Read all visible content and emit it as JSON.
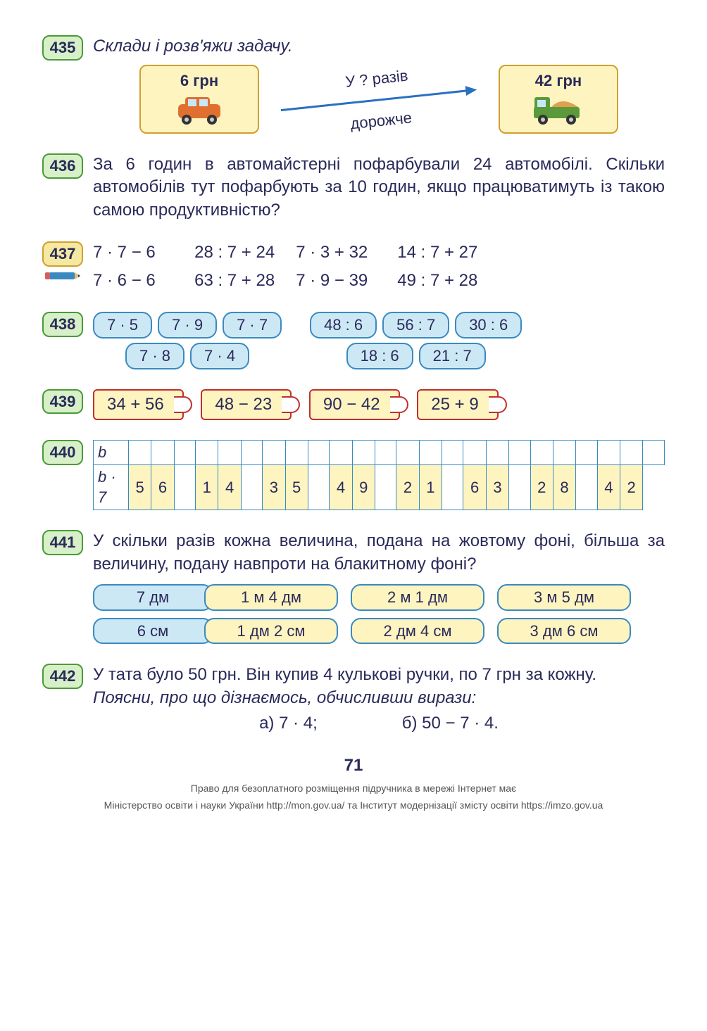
{
  "p435": {
    "num": "435",
    "instruction": "Склади і розв'яжи задачу.",
    "left_price": "6 грн",
    "right_price": "42 грн",
    "arrow_top": "У ? разів",
    "arrow_bottom": "дорожче",
    "car_color": "#e07030",
    "truck_color": "#5a9a3a"
  },
  "p436": {
    "num": "436",
    "text": "За 6 годин в автомайстерні пофарбували 24 автомобілі. Скільки автомобілів тут пофарбують за 10 годин, якщо працюватимуть із такою самою продуктивністю?"
  },
  "p437": {
    "num": "437",
    "rows": [
      [
        "7 · 7 − 6",
        "28 : 7 + 24",
        "7 · 3 + 32",
        "14 : 7 + 27"
      ],
      [
        "7 · 6 − 6",
        "63 : 7 + 28",
        "7 · 9 − 39",
        "49 : 7 + 28"
      ]
    ]
  },
  "p438": {
    "num": "438",
    "left_top": [
      "7 · 5",
      "7 · 9",
      "7 · 7"
    ],
    "left_bottom": [
      "7 · 8",
      "7 · 4"
    ],
    "right_top": [
      "48 : 6",
      "56 : 7",
      "30 : 6"
    ],
    "right_bottom": [
      "18 : 6",
      "21 : 7"
    ]
  },
  "p439": {
    "num": "439",
    "items": [
      "34 + 56",
      "48 − 23",
      "90 − 42",
      "25 + 9"
    ]
  },
  "p440": {
    "num": "440",
    "row_labels": [
      "b",
      "b · 7"
    ],
    "values": [
      "56",
      "14",
      "35",
      "49",
      "21",
      "63",
      "28",
      "42"
    ]
  },
  "p441": {
    "num": "441",
    "text": "У скільки разів кожна величина, подана на жовтому фоні, більша за величину, подану навпроти на блакитному фоні?",
    "row1": [
      "7 дм",
      "1 м 4 дм",
      "2 м 1 дм",
      "3 м 5 дм"
    ],
    "row2": [
      "6 см",
      "1 дм 2 см",
      "2 дм 4 см",
      "3 дм 6 см"
    ]
  },
  "p442": {
    "num": "442",
    "text1": "У тата було 50 грн. Він купив 4 кулькові ручки, по 7 грн за кожну.",
    "text2": "Поясни, про що дізнаємось, обчисливши вирази:",
    "a_label": "а) 7 · 4;",
    "b_label": "б) 50 − 7 · 4."
  },
  "pagenum": "71",
  "footer1": "Право для безоплатного розміщення підручника в мережі Інтернет має",
  "footer2": "Міністерство освіти і науки України http://mon.gov.ua/ та Інститут модернізації змісту освіти https://imzo.gov.ua"
}
